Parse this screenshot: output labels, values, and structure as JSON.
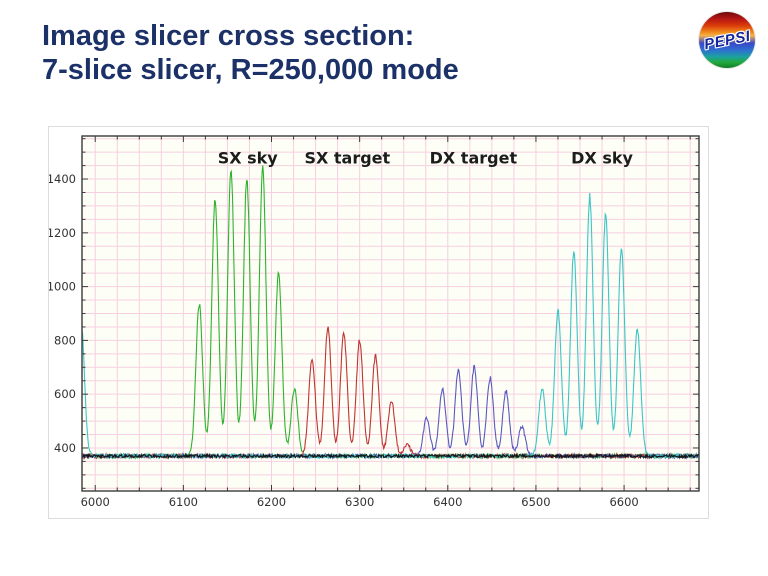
{
  "slide": {
    "title_line1": "Image slicer cross section:",
    "title_line2": "7-slice slicer, R=250,000 mode",
    "title_color": "#1b3168",
    "logo_text": "PEPSI"
  },
  "chart_data": {
    "type": "line",
    "title": "",
    "xlabel": "",
    "ylabel": "",
    "xlim": [
      5985,
      6685
    ],
    "ylim": [
      240,
      1560
    ],
    "x_ticks": [
      6000,
      6100,
      6200,
      6300,
      6400,
      6500,
      6600
    ],
    "y_ticks": [
      400,
      600,
      800,
      1000,
      1200,
      1400
    ],
    "x_minor_step": 25,
    "y_minor_step": 50,
    "grid": true,
    "grid_color": "#f7cfe2",
    "plot_bg": "#fdfef5",
    "axis_color": "#3a3a3a",
    "baseline_level": 370,
    "noise_amplitude": 7,
    "peak_sigma": 3.8,
    "legend_position": "none",
    "annotations": [
      {
        "label": "SX sky",
        "x": 6173,
        "y": 1480
      },
      {
        "label": "SX target",
        "x": 6286,
        "y": 1480
      },
      {
        "label": "DX target",
        "x": 6429,
        "y": 1480
      },
      {
        "label": "DX sky",
        "x": 6575,
        "y": 1480
      }
    ],
    "series": [
      {
        "name": "SX sky",
        "color": "#2fb32f",
        "peaks": [
          [
            6118,
            935
          ],
          [
            6136,
            1325
          ],
          [
            6154,
            1435
          ],
          [
            6172,
            1400
          ],
          [
            6190,
            1435
          ],
          [
            6208,
            1055
          ],
          [
            6226,
            620
          ]
        ]
      },
      {
        "name": "SX target",
        "color": "#bf3535",
        "peaks": [
          [
            6246,
            730
          ],
          [
            6264,
            845
          ],
          [
            6282,
            830
          ],
          [
            6300,
            800
          ],
          [
            6318,
            745
          ],
          [
            6336,
            575
          ],
          [
            6354,
            410
          ]
        ]
      },
      {
        "name": "DX target",
        "color": "#5a5ac0",
        "peaks": [
          [
            6376,
            510
          ],
          [
            6394,
            620
          ],
          [
            6412,
            690
          ],
          [
            6430,
            700
          ],
          [
            6448,
            660
          ],
          [
            6466,
            610
          ],
          [
            6484,
            480
          ]
        ]
      },
      {
        "name": "DX sky",
        "color": "#3cc6c6",
        "peaks": [
          [
            5984,
            860
          ],
          [
            6507,
            620
          ],
          [
            6525,
            910
          ],
          [
            6543,
            1130
          ],
          [
            6561,
            1335
          ],
          [
            6579,
            1270
          ],
          [
            6597,
            1140
          ],
          [
            6615,
            845
          ]
        ]
      },
      {
        "name": "flat baseline",
        "color": "#161616",
        "peaks": []
      }
    ]
  }
}
